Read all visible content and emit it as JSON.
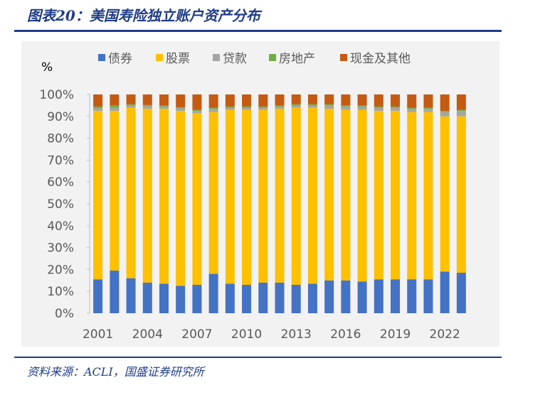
{
  "header": {
    "title": "图表20：美国寿险独立账户资产分布"
  },
  "footer": {
    "source": "资料来源：ACLI，国盛证券研究所"
  },
  "colors": {
    "债券": "#4472c4",
    "股票": "#ffc000",
    "贷款": "#a5a5a5",
    "房地产": "#70ad47",
    "现金及其他": "#c55a11"
  },
  "chart_data": {
    "type": "bar",
    "stacked": true,
    "unit_label": "%",
    "ylim": [
      0,
      100
    ],
    "yticks": [
      "0%",
      "10%",
      "20%",
      "30%",
      "40%",
      "50%",
      "60%",
      "70%",
      "80%",
      "90%",
      "100%"
    ],
    "categories": [
      "2001",
      "2002",
      "2003",
      "2004",
      "2005",
      "2006",
      "2007",
      "2008",
      "2009",
      "2010",
      "2011",
      "2012",
      "2013",
      "2014",
      "2015",
      "2016",
      "2017",
      "2018",
      "2019",
      "2020",
      "2021",
      "2022",
      "2023"
    ],
    "x_tick_labels": [
      "2001",
      "2004",
      "2007",
      "2010",
      "2013",
      "2016",
      "2019",
      "2022"
    ],
    "legend_position": "top",
    "series": [
      {
        "name": "债券",
        "values": [
          15.5,
          19.5,
          16,
          14,
          13.5,
          12.5,
          13,
          18,
          13.5,
          13,
          14,
          14,
          13,
          13.5,
          15,
          15,
          14.5,
          15.5,
          15.5,
          15.5,
          15.5,
          19,
          18.5
        ]
      },
      {
        "name": "股票",
        "values": [
          77,
          73,
          78,
          79.5,
          80,
          80,
          78.5,
          74,
          79.5,
          80,
          79,
          79.5,
          81,
          80.5,
          78.5,
          78,
          78.5,
          77,
          77,
          76.5,
          76.5,
          71,
          71.5
        ]
      },
      {
        "name": "贷款",
        "values": [
          1.2,
          1.5,
          1.0,
          1.2,
          1.0,
          1.2,
          1.0,
          1.5,
          1.0,
          1.0,
          1.0,
          1.0,
          1.0,
          1.0,
          1.5,
          1.5,
          1.5,
          1.5,
          1.5,
          1.5,
          1.5,
          2.0,
          2.5
        ]
      },
      {
        "name": "房地产",
        "values": [
          0.8,
          1.0,
          0.5,
          0.5,
          0.5,
          0.5,
          0.5,
          0.5,
          0.5,
          0.5,
          0.5,
          0.5,
          0.5,
          0.5,
          0.5,
          0.5,
          0.5,
          0.5,
          0.5,
          0.5,
          0.5,
          0.5,
          0.5
        ]
      },
      {
        "name": "现金及其他",
        "values": [
          5.5,
          5.0,
          4.5,
          4.8,
          5.0,
          5.8,
          7.0,
          6.0,
          5.5,
          5.5,
          5.5,
          5.0,
          4.5,
          4.5,
          4.5,
          5.0,
          5.0,
          5.5,
          5.5,
          6.0,
          6.0,
          7.5,
          7.0
        ]
      }
    ]
  }
}
